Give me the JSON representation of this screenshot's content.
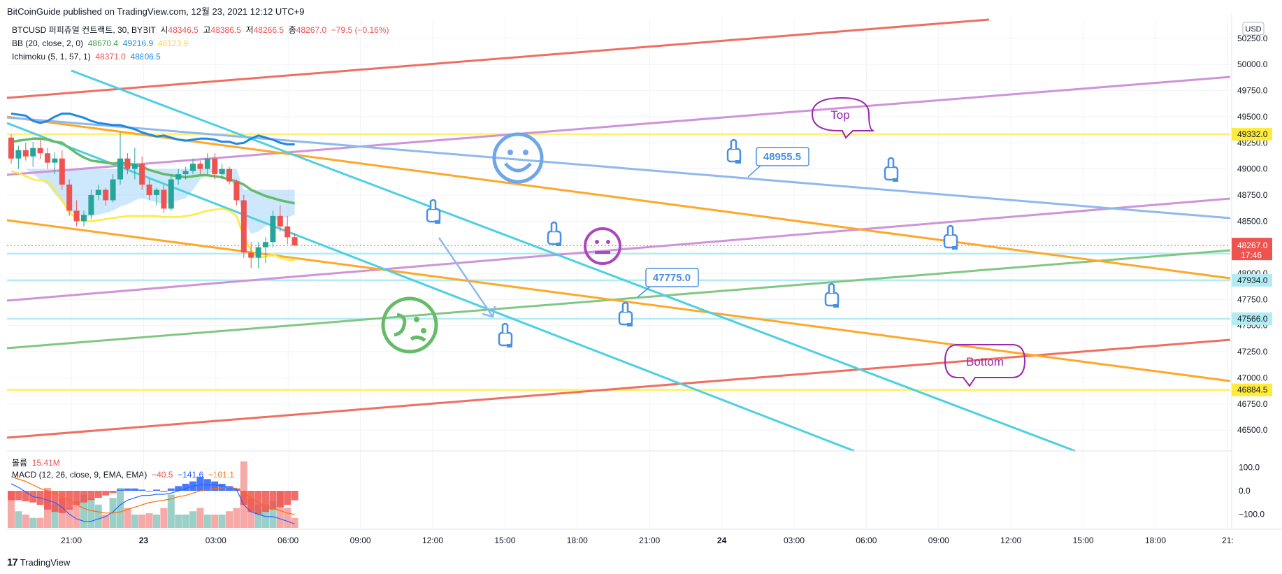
{
  "header": {
    "publish_text": "BitCoinGuide published on TradingView.com, 12월 23, 2021 12:12 UTC+9"
  },
  "legend": {
    "symbol": "BTCUSD 퍼피츄얼 컨트랙트, 30, BYBIT",
    "open_label": "시",
    "open": "48346.5",
    "high_label": "고",
    "high": "48386.5",
    "low_label": "저",
    "low": "48266.5",
    "close_label": "종",
    "close": "48267.0",
    "change": "−79.5 (−0.16%)",
    "bb_label": "BB (20, close, 2, 0)",
    "bb_basis": "48670.4",
    "bb_upper": "49216.9",
    "bb_lower": "48123.9",
    "ichimoku_label": "Ichimoku (5, 1, 57, 1)",
    "ichimoku_a": "48371.0",
    "ichimoku_b": "48806.5",
    "volume_label": "볼륨",
    "volume": "15.41M",
    "macd_label": "MACD (12, 26, close, 9, EMA, EMA)",
    "macd_hist": "−40.5",
    "macd_line": "−141.6",
    "macd_signal": "−101.1"
  },
  "footer": {
    "brand": "TradingView"
  },
  "colors": {
    "up": "#26a69a",
    "down": "#ef5350",
    "bb_basis": "#66bb6a",
    "bb_lower": "#ffeb3b",
    "ichimoku_blue": "#1e88e5",
    "cloud": "#90caf9",
    "cyan": "#4dd0e1",
    "orange": "#ffa726",
    "red": "#f06e5f",
    "violet": "#ce93d8",
    "green": "#81c784",
    "lightblue": "#90b8f0",
    "yellow": "#fff176",
    "magenta": "#9c27b0"
  },
  "chart_data": {
    "type": "candlestick",
    "symbol": "BTCUSD",
    "timeframe": "30",
    "currency": "USD",
    "ylim": [
      46300,
      50450
    ],
    "y_ticks": [
      "50250.0",
      "50000.0",
      "49750.0",
      "49500.0",
      "49250.0",
      "49000.0",
      "48750.0",
      "48500.0",
      "48250.0",
      "48000.0",
      "47750.0",
      "47500.0",
      "47250.0",
      "47000.0",
      "46750.0",
      "46500.0"
    ],
    "x_ticks": [
      "21:00",
      "23",
      "03:00",
      "06:00",
      "09:00",
      "12:00",
      "15:00",
      "18:00",
      "21:00",
      "24",
      "03:00",
      "06:00",
      "09:00",
      "12:00",
      "15:00",
      "18:00",
      "21:"
    ],
    "x_tick_bold": [
      false,
      true,
      false,
      false,
      false,
      false,
      false,
      false,
      false,
      true,
      false,
      false,
      false,
      false,
      false,
      false,
      false
    ],
    "candles": [
      [
        49300,
        49330,
        49050,
        49100
      ],
      [
        49100,
        49220,
        49000,
        49180
      ],
      [
        49180,
        49250,
        49080,
        49120
      ],
      [
        49120,
        49260,
        49020,
        49200
      ],
      [
        49200,
        49280,
        49100,
        49150
      ],
      [
        49150,
        49200,
        49000,
        49060
      ],
      [
        49060,
        49160,
        48950,
        49100
      ],
      [
        49100,
        49180,
        48800,
        48850
      ],
      [
        48850,
        48900,
        48550,
        48600
      ],
      [
        48600,
        48700,
        48450,
        48500
      ],
      [
        48500,
        48600,
        48450,
        48560
      ],
      [
        48560,
        48800,
        48520,
        48750
      ],
      [
        48750,
        48850,
        48700,
        48800
      ],
      [
        48800,
        48820,
        48650,
        48700
      ],
      [
        48700,
        48950,
        48680,
        48900
      ],
      [
        48900,
        49350,
        48850,
        49100
      ],
      [
        49100,
        49150,
        48950,
        49000
      ],
      [
        49000,
        49200,
        48900,
        49050
      ],
      [
        49050,
        49120,
        48800,
        48850
      ],
      [
        48850,
        48900,
        48700,
        48750
      ],
      [
        48750,
        48820,
        48650,
        48800
      ],
      [
        48800,
        48850,
        48580,
        48620
      ],
      [
        48620,
        48950,
        48600,
        48900
      ],
      [
        48900,
        49000,
        48850,
        48950
      ],
      [
        48950,
        49020,
        48900,
        48980
      ],
      [
        48980,
        49100,
        48950,
        49050
      ],
      [
        49050,
        49080,
        48950,
        49000
      ],
      [
        49000,
        49150,
        48950,
        49100
      ],
      [
        49100,
        49150,
        48900,
        48950
      ],
      [
        48950,
        49050,
        48900,
        49000
      ],
      [
        49000,
        49020,
        48850,
        48880
      ],
      [
        48880,
        48900,
        48650,
        48700
      ],
      [
        48700,
        48750,
        48150,
        48200
      ],
      [
        48200,
        48300,
        48050,
        48150
      ],
      [
        48150,
        48300,
        48050,
        48250
      ],
      [
        48250,
        48350,
        48100,
        48300
      ],
      [
        48300,
        48600,
        48250,
        48550
      ],
      [
        48550,
        48650,
        48400,
        48450
      ],
      [
        48450,
        48550,
        48280,
        48346.5
      ],
      [
        48346.5,
        48386.5,
        48266.5,
        48267
      ]
    ],
    "bb_basis": [
      49260,
      49270,
      49280,
      49290,
      49290,
      49280,
      49260,
      49250,
      49200,
      49150,
      49110,
      49080,
      49070,
      49060,
      49050,
      49060,
      49050,
      49040,
      49020,
      48990,
      48970,
      48950,
      48940,
      48930,
      48920,
      48930,
      48940,
      48940,
      48930,
      48920,
      48900,
      48880,
      48850,
      48800,
      48770,
      48740,
      48720,
      48700,
      48685,
      48670.4
    ],
    "bb_lower": [
      48980,
      48960,
      48930,
      48900,
      48890,
      48880,
      48800,
      48700,
      48580,
      48530,
      48500,
      48500,
      48510,
      48520,
      48530,
      48540,
      48550,
      48550,
      48550,
      48550,
      48550,
      48540,
      48540,
      48540,
      48550,
      48560,
      48580,
      48600,
      48610,
      48620,
      48600,
      48550,
      48350,
      48220,
      48150,
      48160,
      48180,
      48150,
      48130,
      48123.9
    ],
    "ichimoku_blue": [
      49530,
      49520,
      49510,
      49460,
      49440,
      49460,
      49500,
      49530,
      49530,
      49510,
      49490,
      49460,
      49440,
      49430,
      49420,
      49420,
      49400,
      49380,
      49350,
      49330,
      49310,
      49320,
      49300,
      49280,
      49270,
      49280,
      49290,
      49290,
      49280,
      49260,
      49260,
      49240,
      49250,
      49290,
      49320,
      49300,
      49280,
      49250,
      49235,
      49235
    ],
    "ichimoku_cloud_top": [
      49000,
      49000,
      49000,
      49000,
      49000,
      49000,
      49000,
      49000,
      49000,
      49000,
      49000,
      49000,
      49000,
      49000,
      49000,
      49000,
      49000,
      49000,
      49000,
      49000,
      49000,
      49000,
      49000,
      49000,
      49000,
      49000,
      49000,
      49000,
      49000,
      49000,
      49000,
      49000,
      48800,
      48800,
      48800,
      48800,
      48800,
      48800,
      48800,
      48800
    ],
    "ichimoku_cloud_bottom": [
      49000,
      49000,
      49000,
      48950,
      48900,
      48850,
      48760,
      48680,
      48600,
      48560,
      48540,
      48550,
      48560,
      48580,
      48600,
      48640,
      48660,
      48700,
      48720,
      48700,
      48680,
      48660,
      48680,
      48700,
      48720,
      48800,
      48900,
      48950,
      48980,
      48950,
      48900,
      48820,
      48500,
      48380,
      48400,
      48450,
      48500,
      48520,
      48540,
      48560
    ],
    "horizontal_lines": [
      {
        "price": 49332,
        "label": "49332.0",
        "kind": "yellow"
      },
      {
        "price": 46884.5,
        "label": "46884.5",
        "kind": "yellow"
      },
      {
        "price": 48189.5,
        "label": "48189.5",
        "kind": "cyan"
      },
      {
        "price": 47934,
        "label": "47934.0",
        "kind": "cyan"
      },
      {
        "price": 47566,
        "label": "47566.0",
        "kind": "cyan"
      }
    ],
    "price_marker": {
      "price": 48267,
      "label": "48267.0",
      "countdown": "17:46"
    },
    "annotations": [
      {
        "type": "callout",
        "text": "Top"
      },
      {
        "type": "callout",
        "text": "Bottom"
      },
      {
        "type": "price-note",
        "text": "48955.5"
      },
      {
        "type": "price-note",
        "text": "47775.0"
      }
    ],
    "volume": [
      0.55,
      0.25,
      0.2,
      0.15,
      0.15,
      0.6,
      0.35,
      0.45,
      0.3,
      0.4,
      0.5,
      0.45,
      0.35,
      0.2,
      0.45,
      0.6,
      0.3,
      0.2,
      0.2,
      0.22,
      0.2,
      0.3,
      0.5,
      0.2,
      0.2,
      0.25,
      0.3,
      0.2,
      0.2,
      0.2,
      0.25,
      0.3,
      1.0,
      0.45,
      0.35,
      0.35,
      0.4,
      0.55,
      0.3,
      0.15
    ],
    "macd_hist": [
      -40,
      -40,
      -45,
      -50,
      -60,
      -80,
      -90,
      -95,
      -80,
      -60,
      -50,
      -40,
      -30,
      -20,
      -10,
      5,
      10,
      10,
      5,
      0,
      5,
      -5,
      10,
      20,
      30,
      40,
      60,
      50,
      40,
      30,
      20,
      10,
      -60,
      -90,
      -100,
      -90,
      -80,
      -70,
      -60,
      -40.5
    ],
    "macd_line": [
      30,
      15,
      -5,
      -25,
      -30,
      -40,
      -50,
      -70,
      -100,
      -120,
      -130,
      -130,
      -120,
      -110,
      -90,
      -60,
      -40,
      -30,
      -20,
      -20,
      -15,
      -15,
      -10,
      0,
      10,
      20,
      25,
      25,
      25,
      20,
      15,
      5,
      -60,
      -90,
      -100,
      -110,
      -110,
      -120,
      -130,
      -141.6
    ],
    "macd_signal": [
      60,
      50,
      40,
      25,
      10,
      0,
      -10,
      -25,
      -40,
      -60,
      -75,
      -85,
      -90,
      -95,
      -95,
      -90,
      -80,
      -70,
      -60,
      -50,
      -45,
      -40,
      -35,
      -25,
      -20,
      -10,
      0,
      5,
      10,
      12,
      15,
      10,
      -10,
      -30,
      -50,
      -65,
      -75,
      -85,
      -95,
      -101.1
    ],
    "macd_ticks": [
      "100.0",
      "0.0",
      "−100.0"
    ]
  }
}
